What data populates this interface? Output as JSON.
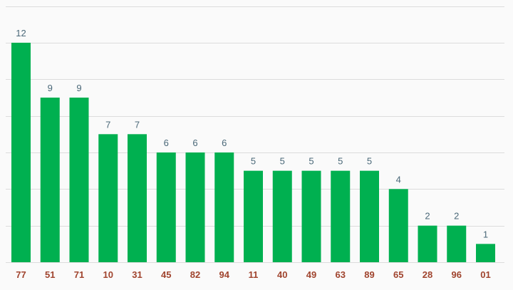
{
  "chart_data": {
    "type": "bar",
    "categories": [
      "77",
      "51",
      "71",
      "10",
      "31",
      "45",
      "82",
      "94",
      "11",
      "40",
      "49",
      "63",
      "89",
      "65",
      "28",
      "96",
      "01"
    ],
    "values": [
      12,
      9,
      9,
      7,
      7,
      6,
      6,
      6,
      5,
      5,
      5,
      5,
      5,
      4,
      2,
      2,
      1
    ],
    "ylim": [
      0,
      14
    ],
    "grid": true,
    "bar_color": "#00b050",
    "value_label_color": "#4a6878",
    "category_label_color": "#a0442e",
    "grid_color": "#dcdcdc",
    "background": "#fafafa"
  }
}
